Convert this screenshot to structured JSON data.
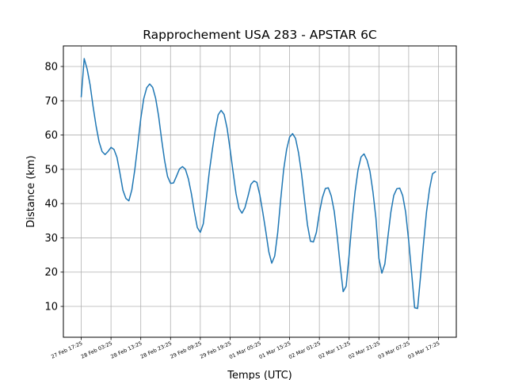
{
  "chart_data": {
    "type": "line",
    "title": "Rapprochement USA 283 - APSTAR 6C",
    "xlabel": "Temps (UTC)",
    "ylabel": "Distance (km)",
    "grid": true,
    "x_tick_labels": [
      "27 Feb 17:25",
      "28 Feb 03:25",
      "28 Feb 13:25",
      "28 Feb 23:25",
      "29 Feb 09:25",
      "29 Feb 19:25",
      "01 Mar 05:25",
      "01 Mar 15:25",
      "02 Mar 01:25",
      "02 Mar 11:25",
      "02 Mar 21:25",
      "03 Mar 07:25",
      "03 Mar 17:25"
    ],
    "x_tick_hours": [
      0,
      10,
      20,
      30,
      40,
      50,
      60,
      70,
      80,
      90,
      100,
      110,
      120
    ],
    "xlim_hours": [
      -6,
      126
    ],
    "y_ticks": [
      10,
      20,
      30,
      40,
      50,
      60,
      70,
      80
    ],
    "ylim": [
      1,
      86
    ],
    "series": [
      {
        "color": "#1f77b4",
        "x_hours": [
          0,
          1,
          2,
          3,
          4,
          5,
          6,
          7,
          8,
          9,
          10,
          11,
          12,
          13,
          14,
          15,
          16,
          17,
          18,
          19,
          20,
          21,
          22,
          23,
          24,
          25,
          26,
          27,
          28,
          29,
          30,
          31,
          32,
          33,
          34,
          35,
          36,
          37,
          38,
          39,
          40,
          41,
          42,
          43,
          44,
          45,
          46,
          47,
          48,
          49,
          50,
          51,
          52,
          53,
          54,
          55,
          56,
          57,
          58,
          59,
          60,
          61,
          62,
          63,
          64,
          65,
          66,
          67,
          68,
          69,
          70,
          71,
          72,
          73,
          74,
          75,
          76,
          77,
          78,
          79,
          80,
          81,
          82,
          83,
          84,
          85,
          86,
          87,
          88,
          89,
          90,
          91,
          92,
          93,
          94,
          95,
          96,
          97,
          98,
          99,
          100,
          101,
          102,
          103,
          104,
          105,
          106,
          107,
          108,
          109,
          110,
          111,
          112,
          113,
          114,
          115,
          116,
          117,
          118,
          119,
          120
        ],
        "distance_km": [
          71.2,
          82.3,
          79.2,
          74.5,
          68.2,
          62.6,
          58.0,
          55.2,
          54.3,
          55.2,
          56.4,
          55.8,
          53.5,
          48.9,
          43.9,
          41.5,
          40.8,
          44.0,
          49.9,
          57.2,
          64.8,
          70.6,
          73.8,
          74.9,
          73.9,
          70.7,
          65.5,
          58.7,
          52.6,
          47.9,
          45.9,
          46.0,
          48.0,
          50.1,
          50.8,
          50.0,
          47.2,
          42.9,
          37.6,
          33.0,
          31.6,
          34.1,
          41.3,
          49.1,
          55.5,
          61.3,
          65.9,
          67.2,
          66.0,
          62.0,
          55.9,
          49.3,
          42.9,
          38.6,
          37.2,
          38.8,
          42.1,
          45.6,
          46.6,
          46.2,
          42.5,
          37.4,
          31.9,
          26.0,
          22.6,
          24.7,
          31.5,
          41.1,
          49.9,
          55.8,
          59.4,
          60.4,
          59.0,
          54.8,
          48.8,
          41.2,
          33.8,
          29.0,
          28.8,
          31.6,
          37.3,
          41.7,
          44.4,
          44.6,
          42.2,
          37.7,
          30.4,
          21.9,
          14.3,
          15.9,
          25.0,
          35.1,
          43.5,
          49.9,
          53.6,
          54.5,
          52.7,
          49.4,
          43.4,
          35.7,
          24.0,
          19.7,
          22.4,
          30.1,
          37.4,
          42.4,
          44.3,
          44.5,
          42.3,
          37.4,
          29.2,
          19.7,
          9.6,
          9.4,
          18.9,
          28.5,
          37.6,
          44.2,
          48.7,
          49.3
        ]
      }
    ]
  }
}
